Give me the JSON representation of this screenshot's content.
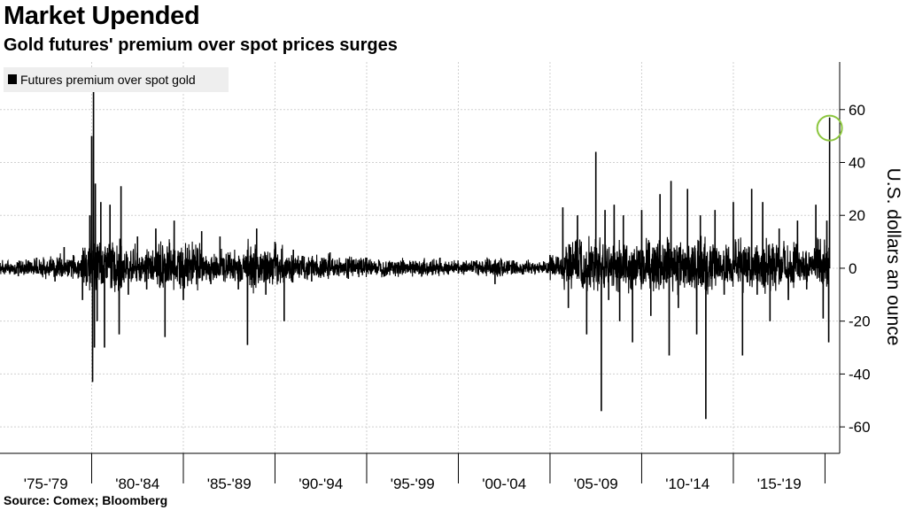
{
  "header": {
    "title": "Market Upended",
    "subtitle": "Gold futures' premium over spot prices surges"
  },
  "footer": {
    "source": "Source: Comex; Bloomberg"
  },
  "colors": {
    "series": "#000000",
    "grid": "#d0d0d0",
    "highlight_circle": "#8cc63f",
    "legend_bg": "#eeeeee"
  },
  "chart_data": {
    "type": "line",
    "title": "Market Upended",
    "subtitle": "Gold futures' premium over spot prices surges",
    "ylabel": "U.S. dollars an ounce",
    "xlabel": "",
    "ylim": [
      -70,
      78
    ],
    "yticks": [
      -60,
      -40,
      -20,
      0,
      20,
      40,
      60
    ],
    "ytick_labels": [
      "-60",
      "-40",
      "-20",
      "0",
      "20",
      "40",
      "60"
    ],
    "xlim": [
      1975.0,
      2020.8
    ],
    "x_categories": [
      "'75-'79",
      "'80-'84",
      "'85-'89",
      "'90-'94",
      "'95-'99",
      "'00-'04",
      "'05-'09",
      "'10-'14",
      "'15-'19"
    ],
    "grid": true,
    "legend": {
      "position": "top-left",
      "entries": [
        "Futures premium over spot gold"
      ]
    },
    "annotation": {
      "type": "circle",
      "x": 2020.25,
      "y": 53,
      "description": "highlight of latest spike"
    },
    "series": [
      {
        "name": "Futures premium over spot gold",
        "x": [
          1975.0,
          1976.0,
          1977.0,
          1978.0,
          1978.5,
          1979.0,
          1979.5,
          1979.9,
          1980.0,
          1980.05,
          1980.1,
          1980.15,
          1980.2,
          1980.3,
          1980.5,
          1980.7,
          1981.0,
          1981.5,
          1981.6,
          1982.0,
          1982.5,
          1983.0,
          1983.5,
          1984.0,
          1984.5,
          1985.0,
          1986.0,
          1986.5,
          1987.0,
          1988.0,
          1988.5,
          1989.0,
          1989.5,
          1990.0,
          1990.5,
          1991.0,
          1992.0,
          1993.0,
          1994.0,
          1995.0,
          1996.0,
          1997.0,
          1998.0,
          1999.0,
          2000.0,
          2001.0,
          2002.0,
          2003.0,
          2004.0,
          2005.0,
          2005.7,
          2006.0,
          2006.5,
          2007.0,
          2007.5,
          2007.8,
          2008.0,
          2008.2,
          2008.5,
          2008.8,
          2009.0,
          2009.5,
          2010.0,
          2010.5,
          2011.0,
          2011.5,
          2011.6,
          2012.0,
          2012.5,
          2013.0,
          2013.2,
          2013.5,
          2014.0,
          2014.5,
          2015.0,
          2015.5,
          2016.0,
          2016.3,
          2016.6,
          2017.0,
          2017.5,
          2018.0,
          2018.5,
          2019.0,
          2019.5,
          2019.9,
          2020.1,
          2020.2,
          2020.25
        ],
        "y": [
          2,
          -3,
          4,
          -5,
          8,
          5,
          -12,
          20,
          50,
          -43,
          67,
          -30,
          32,
          -20,
          25,
          -30,
          24,
          -25,
          31,
          -10,
          12,
          -8,
          15,
          -26,
          18,
          -12,
          14,
          -6,
          12,
          -8,
          -29,
          15,
          -10,
          10,
          -20,
          7,
          -5,
          6,
          -4,
          4,
          -3,
          3,
          -3,
          4,
          -2,
          3,
          -6,
          3,
          -2,
          5,
          23,
          -15,
          20,
          -25,
          44,
          -54,
          22,
          -12,
          24,
          -20,
          20,
          -28,
          22,
          -18,
          28,
          -33,
          33,
          -15,
          30,
          -25,
          20,
          -57,
          22,
          -10,
          25,
          -33,
          30,
          -10,
          25,
          -20,
          15,
          -12,
          18,
          -8,
          24,
          -19,
          18,
          -28,
          57
        ]
      }
    ]
  }
}
